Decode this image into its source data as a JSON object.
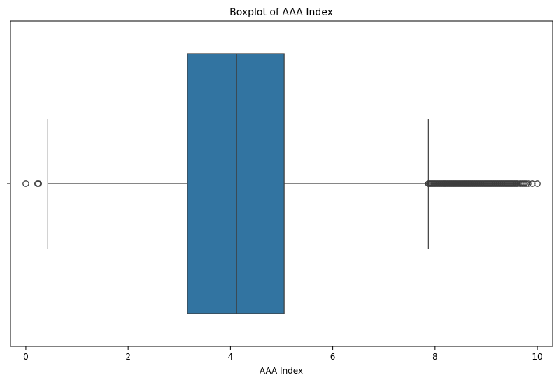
{
  "chart_data": {
    "type": "boxplot",
    "orientation": "horizontal",
    "title": "Boxplot of AAA Index",
    "xlabel": "AAA Index",
    "ylabel": "",
    "xlim": [
      -0.3,
      10.3
    ],
    "xticks": [
      0,
      2,
      4,
      6,
      8,
      10
    ],
    "xtick_labels": [
      "0",
      "2",
      "4",
      "6",
      "8",
      "10"
    ],
    "grid": false,
    "box": {
      "whisker_low": 0.43,
      "q1": 3.16,
      "median": 4.12,
      "q3": 5.05,
      "whisker_high": 7.87
    },
    "outliers_low": [
      0.0,
      0.23,
      0.25
    ],
    "outliers_high_dense_range": [
      7.87,
      9.6
    ],
    "outliers_high": [
      9.62,
      9.66,
      9.7,
      9.74,
      9.78,
      9.82,
      9.9,
      10.0
    ],
    "colors": {
      "box_fill": "#3274a1",
      "line": "#3d3d3d",
      "outlier_edge": "#3d3d3d",
      "axes": "#000000"
    }
  }
}
